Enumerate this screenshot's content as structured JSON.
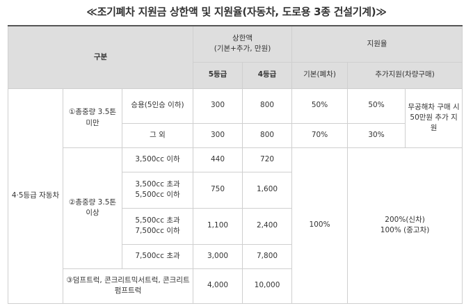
{
  "title": "≪조기폐차 지원금 상한액 및 지원율(자동차, 도로용 3종 건설기계)≫",
  "header": {
    "gubun": "구분",
    "cap": "상한액",
    "cap_sub": "(기본+추가, 만원)",
    "rate": "지원율",
    "grade5": "5등급",
    "grade4": "4등급",
    "basic": "기본(폐차)",
    "additional": "추가지원(차량구매)"
  },
  "rows": {
    "group": "4·5등급 자동차",
    "cat1": "①총중량 3.5톤 미만",
    "cat1_sub1": "승용(5인승 이하)",
    "cat1_sub1_g5": "300",
    "cat1_sub1_g4": "800",
    "cat1_sub1_basic": "50%",
    "cat1_sub1_add": "50%",
    "cat1_note": "무공해차 구매 시 50만원 추가 지원",
    "cat1_sub2": "그 외",
    "cat1_sub2_g5": "300",
    "cat1_sub2_g4": "800",
    "cat1_sub2_basic": "70%",
    "cat1_sub2_add": "30%",
    "cat2": "②총중량 3.5톤 이상",
    "cat2_sub1": "3,500cc 이하",
    "cat2_sub1_g5": "440",
    "cat2_sub1_g4": "720",
    "cat2_sub2": "3,500cc 초과 5,500cc 이하",
    "cat2_sub2_g5": "750",
    "cat2_sub2_g4": "1,600",
    "cat2_sub3": "5,500cc 초과 7,500cc 이하",
    "cat2_sub3_g5": "1,100",
    "cat2_sub3_g4": "2,400",
    "cat2_sub4": "7,500cc 초과",
    "cat2_sub4_g5": "3,000",
    "cat2_sub4_g4": "7,800",
    "cat2_basic": "100%",
    "cat2_add_line1": "200%(신차)",
    "cat2_add_line2": "100% (중고차)",
    "cat3": "③덤프트럭, 콘크리트믹서트럭, 콘크리트펌프트럭",
    "cat3_g5": "4,000",
    "cat3_g4": "10,000"
  }
}
